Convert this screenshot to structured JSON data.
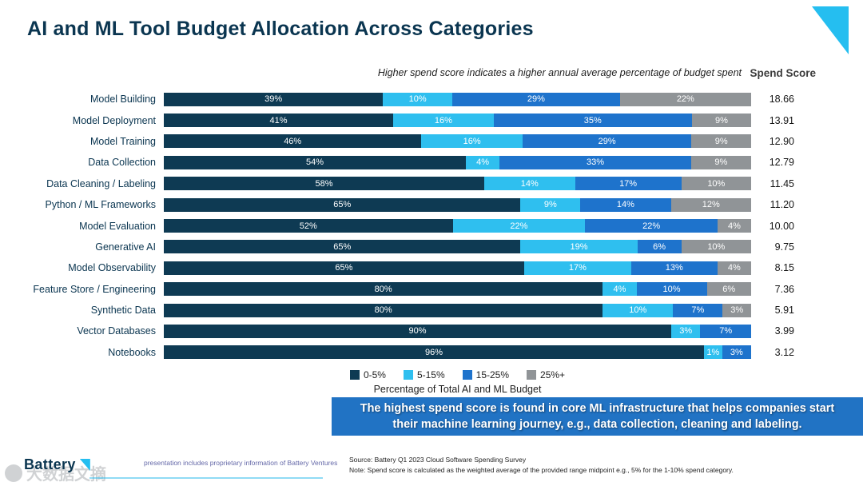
{
  "title": "AI and ML Tool Budget Allocation Across Categories",
  "subtitle": "Higher spend score indicates a higher annual average percentage of budget spent",
  "spend_score_header": "Spend Score",
  "chart_data": {
    "type": "bar",
    "stacked": true,
    "orientation": "horizontal",
    "xlim": [
      0,
      100
    ],
    "legend_position": "bottom",
    "xlabel": "Percentage of Total AI and ML Budget",
    "categories": [
      "Model Building",
      "Model Deployment",
      "Model Training",
      "Data Collection",
      "Data Cleaning / Labeling",
      "Python / ML Frameworks",
      "Model Evaluation",
      "Generative AI",
      "Model Observability",
      "Feature Store / Engineering",
      "Synthetic Data",
      "Vector Databases",
      "Notebooks"
    ],
    "series": [
      {
        "name": "0-5%",
        "color": "#0E3A53",
        "values": [
          39,
          41,
          46,
          54,
          58,
          65,
          52,
          65,
          65,
          80,
          80,
          90,
          96
        ]
      },
      {
        "name": "5-15%",
        "color": "#2FBFEF",
        "values": [
          10,
          16,
          16,
          4,
          14,
          9,
          22,
          19,
          17,
          4,
          10,
          3,
          1
        ]
      },
      {
        "name": "15-25%",
        "color": "#1E73CC",
        "values": [
          29,
          35,
          29,
          33,
          17,
          14,
          22,
          6,
          13,
          10,
          7,
          7,
          3
        ]
      },
      {
        "name": "25%+",
        "color": "#909497",
        "values": [
          22,
          9,
          9,
          9,
          10,
          12,
          4,
          10,
          4,
          6,
          3,
          0,
          0
        ]
      }
    ],
    "spend_scores": [
      "18.66",
      "13.91",
      "12.90",
      "12.79",
      "11.45",
      "11.20",
      "10.00",
      "9.75",
      "8.15",
      "7.36",
      "5.91",
      "3.99",
      "3.12"
    ]
  },
  "annotation": {
    "text": "The highest spend score is found in core ML infrastructure that helps companies start their machine learning journey, e.g., data collection, cleaning and labeling."
  },
  "footer": {
    "logo_text": "Battery",
    "confidential": "presentation includes proprietary information of Battery Ventures",
    "source": "Source: Battery Q1 2023 Cloud Software Spending Survey",
    "note": "Note: Spend score is calculated as the weighted average of the provided range midpoint e.g., 5% for the 1-10% spend category."
  },
  "watermark": {
    "text": "大数据文摘"
  }
}
